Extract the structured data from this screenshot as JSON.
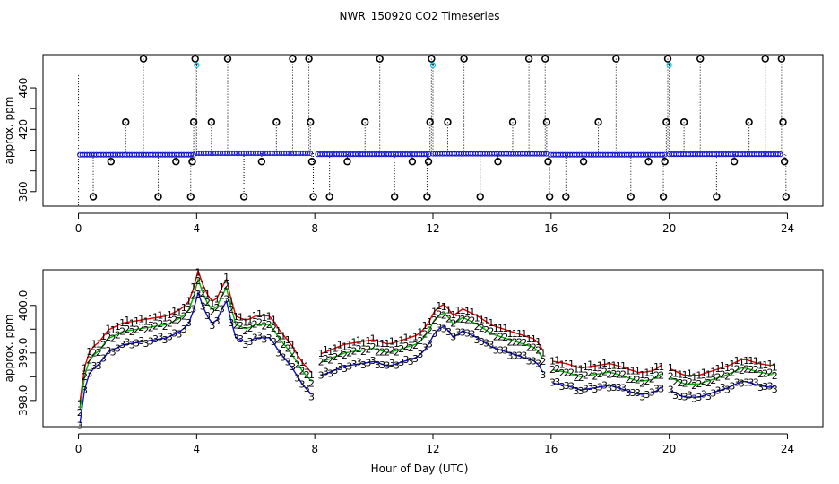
{
  "title": "NWR_150920  CO2 Timeseries",
  "xlabel": "Hour of Day (UTC)",
  "colors": {
    "black": "#000000",
    "blue": "#1010d0",
    "cyan": "#00c8e6",
    "green": "#00b400",
    "red": "#e00000",
    "gray": "#999999"
  },
  "chart_data": [
    {
      "type": "scatter",
      "ylabel": "approx. ppm",
      "xlim": [
        -1.2,
        25.2
      ],
      "ylim": [
        346,
        492
      ],
      "xticks": [
        0,
        4,
        8,
        12,
        16,
        20,
        24
      ],
      "yticks": [
        360,
        380,
        400,
        420,
        440,
        460
      ],
      "ytick_labels": [
        "360",
        "",
        "",
        "420",
        "",
        "460"
      ],
      "baseline": {
        "segments": [
          {
            "start": 0.05,
            "end": 3.95,
            "level": 395.5
          },
          {
            "start": 4.0,
            "end": 7.9,
            "level": 397
          },
          {
            "start": 8.1,
            "end": 11.9,
            "level": 396
          },
          {
            "start": 12.0,
            "end": 15.85,
            "level": 396.5
          },
          {
            "start": 16.0,
            "end": 19.85,
            "level": 395.5
          },
          {
            "start": 20.0,
            "end": 23.8,
            "level": 396
          }
        ],
        "step": 0.08
      },
      "spikes": [
        {
          "x": 0.0,
          "y": 472,
          "kind": "line"
        },
        {
          "x": 0.5,
          "y": 355
        },
        {
          "x": 1.1,
          "y": 389
        },
        {
          "x": 1.6,
          "y": 427
        },
        {
          "x": 2.2,
          "y": 488
        },
        {
          "x": 2.7,
          "y": 355
        },
        {
          "x": 3.3,
          "y": 389
        },
        {
          "x": 3.8,
          "y": 355
        },
        {
          "x": 3.85,
          "y": 389
        },
        {
          "x": 3.9,
          "y": 427
        },
        {
          "x": 3.95,
          "y": 488
        },
        {
          "x": 4.0,
          "y": 482,
          "kind": "cyan"
        },
        {
          "x": 4.5,
          "y": 427
        },
        {
          "x": 5.05,
          "y": 488
        },
        {
          "x": 5.6,
          "y": 355
        },
        {
          "x": 6.2,
          "y": 389
        },
        {
          "x": 6.7,
          "y": 427
        },
        {
          "x": 7.25,
          "y": 488
        },
        {
          "x": 7.8,
          "y": 488
        },
        {
          "x": 7.85,
          "y": 427
        },
        {
          "x": 7.9,
          "y": 389
        },
        {
          "x": 7.95,
          "y": 355
        },
        {
          "x": 8.5,
          "y": 355
        },
        {
          "x": 9.1,
          "y": 389
        },
        {
          "x": 9.7,
          "y": 427
        },
        {
          "x": 10.2,
          "y": 488
        },
        {
          "x": 10.7,
          "y": 355
        },
        {
          "x": 11.3,
          "y": 389
        },
        {
          "x": 11.8,
          "y": 355
        },
        {
          "x": 11.85,
          "y": 389
        },
        {
          "x": 11.9,
          "y": 427
        },
        {
          "x": 11.95,
          "y": 488
        },
        {
          "x": 12.0,
          "y": 482,
          "kind": "cyan"
        },
        {
          "x": 12.5,
          "y": 427
        },
        {
          "x": 13.05,
          "y": 488
        },
        {
          "x": 13.6,
          "y": 355
        },
        {
          "x": 14.2,
          "y": 389
        },
        {
          "x": 14.7,
          "y": 427
        },
        {
          "x": 15.25,
          "y": 488
        },
        {
          "x": 15.8,
          "y": 488
        },
        {
          "x": 15.85,
          "y": 427
        },
        {
          "x": 15.9,
          "y": 389
        },
        {
          "x": 15.95,
          "y": 355
        },
        {
          "x": 16.5,
          "y": 355
        },
        {
          "x": 17.1,
          "y": 389
        },
        {
          "x": 17.6,
          "y": 427
        },
        {
          "x": 18.2,
          "y": 488
        },
        {
          "x": 18.7,
          "y": 355
        },
        {
          "x": 19.3,
          "y": 389
        },
        {
          "x": 19.8,
          "y": 355
        },
        {
          "x": 19.85,
          "y": 389
        },
        {
          "x": 19.9,
          "y": 427
        },
        {
          "x": 19.95,
          "y": 488
        },
        {
          "x": 20.0,
          "y": 482,
          "kind": "cyan"
        },
        {
          "x": 20.5,
          "y": 427
        },
        {
          "x": 21.05,
          "y": 488
        },
        {
          "x": 21.6,
          "y": 355
        },
        {
          "x": 22.2,
          "y": 389
        },
        {
          "x": 22.7,
          "y": 427
        },
        {
          "x": 23.25,
          "y": 488
        },
        {
          "x": 23.8,
          "y": 488
        },
        {
          "x": 23.85,
          "y": 427
        },
        {
          "x": 23.9,
          "y": 389
        },
        {
          "x": 23.95,
          "y": 355
        }
      ]
    },
    {
      "type": "line",
      "ylabel": "approx. ppm",
      "xlim": [
        -1.2,
        25.2
      ],
      "ylim": [
        397.45,
        400.75
      ],
      "xticks": [
        0,
        4,
        8,
        12,
        16,
        20,
        24
      ],
      "yticks": [
        398.0,
        398.5,
        399.0,
        399.5,
        400.0
      ],
      "ytick_labels": [
        "398.0",
        "",
        "399.0",
        "",
        "400.0"
      ],
      "series": [
        {
          "label": "1",
          "color": "red",
          "offset": 0.18,
          "points": [
            [
              0.05,
              397.8
            ],
            [
              0.2,
              398.5
            ],
            [
              0.4,
              398.9
            ],
            [
              0.7,
              399.05
            ],
            [
              1.0,
              399.3
            ],
            [
              1.5,
              399.45
            ],
            [
              2.0,
              399.5
            ],
            [
              2.5,
              399.55
            ],
            [
              3.0,
              399.6
            ],
            [
              3.5,
              399.75
            ],
            [
              3.8,
              399.95
            ],
            [
              4.05,
              400.55
            ],
            [
              4.3,
              400.1
            ],
            [
              4.6,
              399.85
            ],
            [
              5.0,
              400.4
            ],
            [
              5.3,
              399.6
            ],
            [
              5.7,
              399.5
            ],
            [
              6.0,
              399.6
            ],
            [
              6.5,
              399.6
            ],
            [
              6.8,
              399.3
            ],
            [
              7.2,
              399.0
            ],
            [
              7.6,
              398.6
            ],
            [
              7.9,
              398.4
            ],
            [
              8.2,
              398.8
            ],
            [
              8.6,
              398.9
            ],
            [
              9.0,
              399.0
            ],
            [
              9.5,
              399.05
            ],
            [
              10.0,
              399.1
            ],
            [
              10.5,
              399.0
            ],
            [
              11.0,
              399.1
            ],
            [
              11.5,
              399.2
            ],
            [
              11.8,
              399.4
            ],
            [
              12.1,
              399.75
            ],
            [
              12.4,
              399.85
            ],
            [
              12.7,
              399.6
            ],
            [
              13.0,
              399.75
            ],
            [
              13.5,
              399.6
            ],
            [
              14.0,
              399.4
            ],
            [
              14.5,
              399.3
            ],
            [
              15.0,
              399.2
            ],
            [
              15.5,
              399.1
            ],
            [
              15.8,
              398.8
            ],
            [
              16.0,
              398.65
            ],
            [
              16.5,
              398.6
            ],
            [
              17.0,
              398.5
            ],
            [
              17.5,
              398.55
            ],
            [
              18.0,
              398.6
            ],
            [
              18.5,
              398.5
            ],
            [
              19.0,
              398.4
            ],
            [
              19.5,
              398.45
            ],
            [
              19.8,
              398.6
            ],
            [
              20.0,
              398.5
            ],
            [
              20.5,
              398.35
            ],
            [
              21.0,
              398.35
            ],
            [
              21.5,
              398.45
            ],
            [
              22.0,
              398.55
            ],
            [
              22.5,
              398.7
            ],
            [
              23.0,
              398.6
            ],
            [
              23.5,
              398.55
            ],
            [
              23.7,
              398.6
            ]
          ]
        },
        {
          "label": "2",
          "color": "green",
          "offset": 0.0,
          "points": [
            [
              0.05,
              397.8
            ],
            [
              0.2,
              398.5
            ],
            [
              0.4,
              398.9
            ],
            [
              0.7,
              399.05
            ],
            [
              1.0,
              399.3
            ],
            [
              1.5,
              399.45
            ],
            [
              2.0,
              399.5
            ],
            [
              2.5,
              399.55
            ],
            [
              3.0,
              399.6
            ],
            [
              3.5,
              399.75
            ],
            [
              3.8,
              399.95
            ],
            [
              4.05,
              400.55
            ],
            [
              4.3,
              400.1
            ],
            [
              4.6,
              399.85
            ],
            [
              5.0,
              400.4
            ],
            [
              5.3,
              399.6
            ],
            [
              5.7,
              399.5
            ],
            [
              6.0,
              399.6
            ],
            [
              6.5,
              399.6
            ],
            [
              6.8,
              399.3
            ],
            [
              7.2,
              399.0
            ],
            [
              7.6,
              398.6
            ],
            [
              7.9,
              398.4
            ],
            [
              8.2,
              398.8
            ],
            [
              8.6,
              398.9
            ],
            [
              9.0,
              399.0
            ],
            [
              9.5,
              399.05
            ],
            [
              10.0,
              399.1
            ],
            [
              10.5,
              399.0
            ],
            [
              11.0,
              399.1
            ],
            [
              11.5,
              399.2
            ],
            [
              11.8,
              399.4
            ],
            [
              12.1,
              399.75
            ],
            [
              12.4,
              399.85
            ],
            [
              12.7,
              399.6
            ],
            [
              13.0,
              399.75
            ],
            [
              13.5,
              399.6
            ],
            [
              14.0,
              399.4
            ],
            [
              14.5,
              399.3
            ],
            [
              15.0,
              399.2
            ],
            [
              15.5,
              399.1
            ],
            [
              15.8,
              398.8
            ],
            [
              16.0,
              398.65
            ],
            [
              16.5,
              398.6
            ],
            [
              17.0,
              398.5
            ],
            [
              17.5,
              398.55
            ],
            [
              18.0,
              398.6
            ],
            [
              18.5,
              398.5
            ],
            [
              19.0,
              398.4
            ],
            [
              19.5,
              398.45
            ],
            [
              19.8,
              398.6
            ],
            [
              20.0,
              398.5
            ],
            [
              20.5,
              398.35
            ],
            [
              21.0,
              398.35
            ],
            [
              21.5,
              398.45
            ],
            [
              22.0,
              398.55
            ],
            [
              22.5,
              398.7
            ],
            [
              23.0,
              398.6
            ],
            [
              23.5,
              398.55
            ],
            [
              23.7,
              398.6
            ]
          ]
        },
        {
          "label": "3",
          "color": "blue",
          "offset": -0.28,
          "points": [
            [
              0.05,
              397.8
            ],
            [
              0.2,
              398.5
            ],
            [
              0.4,
              398.9
            ],
            [
              0.7,
              399.05
            ],
            [
              1.0,
              399.3
            ],
            [
              1.5,
              399.45
            ],
            [
              2.0,
              399.5
            ],
            [
              2.5,
              399.55
            ],
            [
              3.0,
              399.6
            ],
            [
              3.5,
              399.75
            ],
            [
              3.8,
              399.95
            ],
            [
              4.05,
              400.55
            ],
            [
              4.3,
              400.1
            ],
            [
              4.6,
              399.85
            ],
            [
              5.0,
              400.4
            ],
            [
              5.3,
              399.6
            ],
            [
              5.7,
              399.5
            ],
            [
              6.0,
              399.6
            ],
            [
              6.5,
              399.6
            ],
            [
              6.8,
              399.3
            ],
            [
              7.2,
              399.0
            ],
            [
              7.6,
              398.6
            ],
            [
              7.9,
              398.4
            ],
            [
              8.2,
              398.8
            ],
            [
              8.6,
              398.9
            ],
            [
              9.0,
              399.0
            ],
            [
              9.5,
              399.05
            ],
            [
              10.0,
              399.1
            ],
            [
              10.5,
              399.0
            ],
            [
              11.0,
              399.1
            ],
            [
              11.5,
              399.2
            ],
            [
              11.8,
              399.4
            ],
            [
              12.1,
              399.75
            ],
            [
              12.4,
              399.85
            ],
            [
              12.7,
              399.6
            ],
            [
              13.0,
              399.75
            ],
            [
              13.5,
              399.6
            ],
            [
              14.0,
              399.4
            ],
            [
              14.5,
              399.3
            ],
            [
              15.0,
              399.2
            ],
            [
              15.5,
              399.1
            ],
            [
              15.8,
              398.8
            ],
            [
              16.0,
              398.65
            ],
            [
              16.5,
              398.6
            ],
            [
              17.0,
              398.5
            ],
            [
              17.5,
              398.55
            ],
            [
              18.0,
              398.6
            ],
            [
              18.5,
              398.5
            ],
            [
              19.0,
              398.4
            ],
            [
              19.5,
              398.45
            ],
            [
              19.8,
              398.6
            ],
            [
              20.0,
              398.5
            ],
            [
              20.5,
              398.35
            ],
            [
              21.0,
              398.35
            ],
            [
              21.5,
              398.45
            ],
            [
              22.0,
              398.55
            ],
            [
              22.5,
              398.7
            ],
            [
              23.0,
              398.6
            ],
            [
              23.5,
              398.55
            ],
            [
              23.7,
              398.6
            ]
          ]
        }
      ],
      "gaps": [
        [
          7.92,
          8.18
        ],
        [
          15.82,
          15.98
        ],
        [
          19.82,
          19.98
        ]
      ],
      "label_step": 0.16
    }
  ]
}
